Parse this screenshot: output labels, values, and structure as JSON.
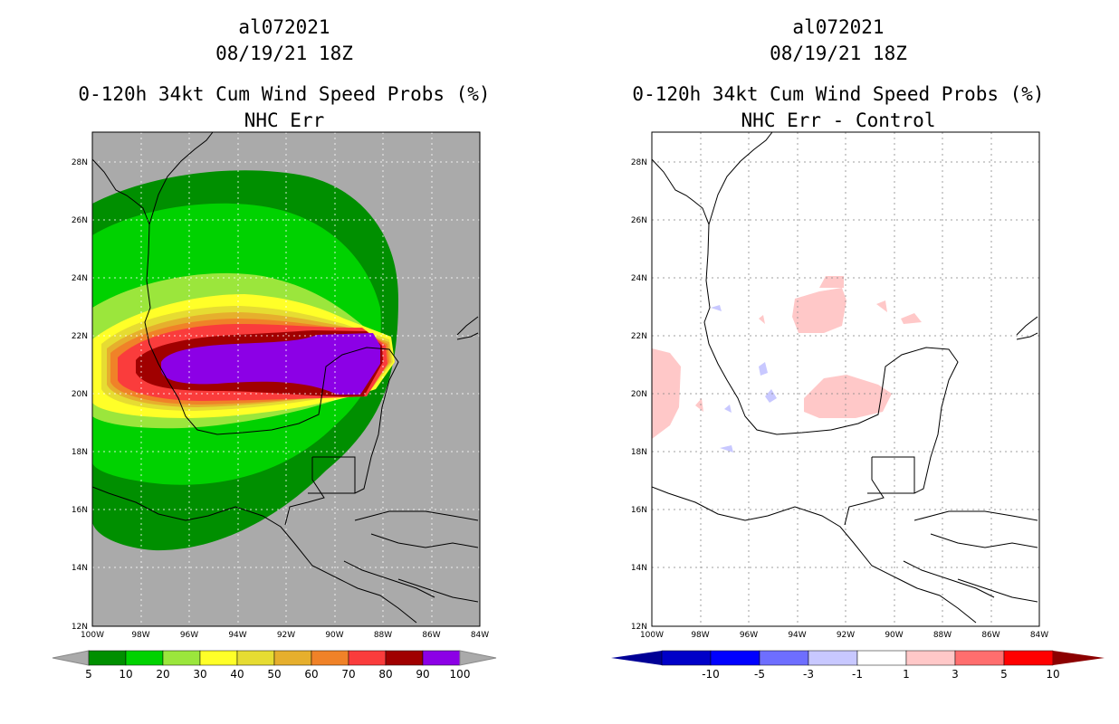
{
  "left_panel": {
    "storm_id": "al072021",
    "datetime": "08/19/21 18Z",
    "product": "0-120h 34kt Cum Wind Speed Probs (%)",
    "subtitle": "NHC Err",
    "lat_labels": [
      "28N",
      "26N",
      "24N",
      "22N",
      "20N",
      "18N",
      "16N",
      "14N",
      "12N"
    ],
    "lon_labels": [
      "100W",
      "98W",
      "96W",
      "94W",
      "92W",
      "90W",
      "88W",
      "86W",
      "84W"
    ],
    "legend_labels": [
      "5",
      "10",
      "20",
      "30",
      "40",
      "50",
      "60",
      "70",
      "80",
      "90",
      "100"
    ],
    "legend_colors": [
      "#008f00",
      "#00d200",
      "#9be63c",
      "#ffff28",
      "#e6dc32",
      "#e6af2d",
      "#f08228",
      "#fa3c3c",
      "#a00000",
      "#8c00e6"
    ],
    "background_color": "#aaaaaa"
  },
  "right_panel": {
    "storm_id": "al072021",
    "datetime": "08/19/21 18Z",
    "product": "0-120h 34kt Cum Wind Speed Probs (%)",
    "subtitle": "NHC Err - Control",
    "lat_labels": [
      "28N",
      "26N",
      "24N",
      "22N",
      "20N",
      "18N",
      "16N",
      "14N",
      "12N"
    ],
    "lon_labels": [
      "100W",
      "98W",
      "96W",
      "94W",
      "92W",
      "90W",
      "88W",
      "86W",
      "84W"
    ],
    "legend_labels": [
      "-10",
      "-5",
      "-3",
      "-1",
      "1",
      "3",
      "5",
      "10"
    ],
    "legend_colors": [
      "#0000c8",
      "#0000ff",
      "#6e6eff",
      "#c8c8ff",
      "#ffffff",
      "#ffc8c8",
      "#ff6e6e",
      "#ff0000"
    ],
    "legend_low_color": "#000096",
    "legend_high_color": "#8c0000"
  }
}
